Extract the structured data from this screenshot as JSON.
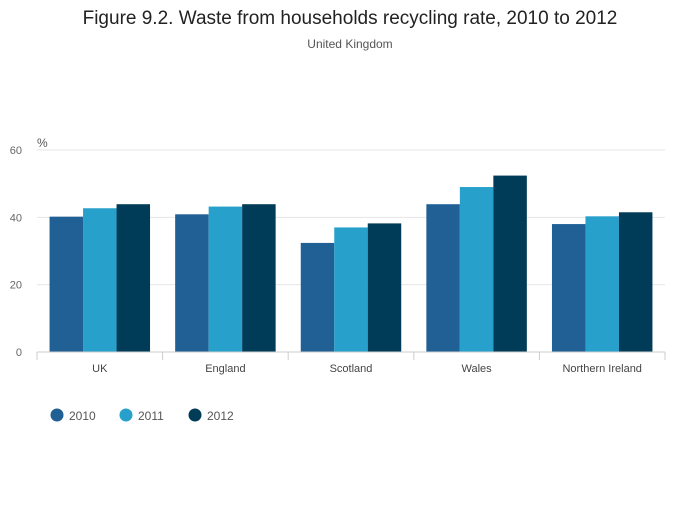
{
  "chart_data": {
    "type": "bar",
    "title": "Figure 9.2. Waste from households recycling rate, 2010 to 2012",
    "subtitle": "United Kingdom",
    "ylabel": "%",
    "xlabel": "",
    "ylim": [
      0,
      60
    ],
    "yticks": [
      0,
      20,
      40,
      60
    ],
    "grid": true,
    "legend_position": "bottom-left",
    "categories": [
      "UK",
      "England",
      "Scotland",
      "Wales",
      "Northern Ireland"
    ],
    "series": [
      {
        "name": "2010",
        "color": "#206095",
        "values": [
          40.2,
          40.9,
          32.4,
          43.9,
          38.0
        ]
      },
      {
        "name": "2011",
        "color": "#27a0cc",
        "values": [
          42.7,
          43.2,
          37.0,
          49.0,
          40.3
        ]
      },
      {
        "name": "2012",
        "color": "#003c57",
        "values": [
          43.9,
          43.9,
          38.2,
          52.4,
          41.5
        ]
      }
    ]
  }
}
